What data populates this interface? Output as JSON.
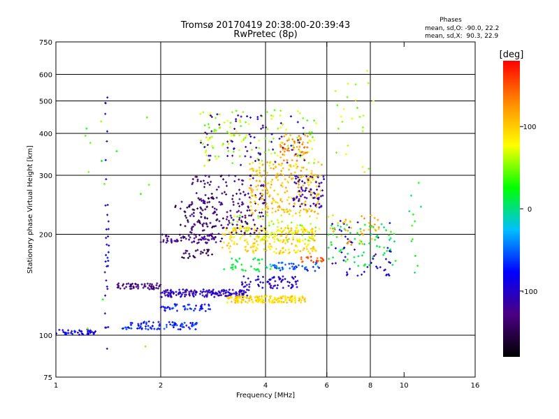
{
  "chart_data": {
    "type": "scatter",
    "title": "Tromsø 20170419 20:38:00-20:39:43",
    "subtitle": "RwPretec (8p)",
    "xlabel": "Frequency [MHz]",
    "ylabel": "Stationary phase Virtual Height [km]",
    "x_scale": "log",
    "y_scale": "log",
    "xlim": [
      1,
      16
    ],
    "ylim": [
      75,
      750
    ],
    "x_ticks": [
      1,
      2,
      4,
      6,
      8,
      10,
      16
    ],
    "y_ticks": [
      75,
      100,
      200,
      300,
      400,
      500,
      600,
      750
    ],
    "x_gridlines": [
      2,
      4,
      6,
      8
    ],
    "y_gridlines": [
      100,
      200,
      300,
      400,
      500,
      600
    ],
    "grid": true,
    "stats": {
      "heading": "Phases",
      "line_o": "mean, sd,O: -90.0, 22.2",
      "line_x": "mean, sd,X:  90.3, 22.9"
    },
    "colorbar": {
      "label": "[deg]",
      "range": [
        -180,
        180
      ],
      "ticks": [
        100,
        0,
        -100
      ],
      "colors": [
        "#000000",
        "#4b0082",
        "#0000ff",
        "#00bfff",
        "#00ff00",
        "#ffff00",
        "#ff8c00",
        "#ff0000"
      ]
    },
    "clusters": [
      {
        "x": [
          1.0,
          1.3
        ],
        "y": [
          100,
          104
        ],
        "phase": -85,
        "n": 45
      },
      {
        "x": [
          1.55,
          2.55
        ],
        "y": [
          104,
          110
        ],
        "phase": -70,
        "n": 90
      },
      {
        "x": [
          1.5,
          2.0
        ],
        "y": [
          137,
          143
        ],
        "phase": -130,
        "n": 60
      },
      {
        "x": [
          2.0,
          3.6
        ],
        "y": [
          130,
          137
        ],
        "phase": -105,
        "n": 160
      },
      {
        "x": [
          2.0,
          2.8
        ],
        "y": [
          118,
          124
        ],
        "phase": -75,
        "n": 45
      },
      {
        "x": [
          3.1,
          5.2
        ],
        "y": [
          125,
          131
        ],
        "phase": 95,
        "n": 160
      },
      {
        "x": [
          3.4,
          5.0
        ],
        "y": [
          138,
          150
        ],
        "phase": -100,
        "n": 70
      },
      {
        "x": [
          2.0,
          3.0
        ],
        "y": [
          188,
          200
        ],
        "phase": -125,
        "n": 70
      },
      {
        "x": [
          2.3,
          2.9
        ],
        "y": [
          170,
          180
        ],
        "phase": -150,
        "n": 25
      },
      {
        "x": [
          3.0,
          5.6
        ],
        "y": [
          175,
          210
        ],
        "phase": 95,
        "n": 220
      },
      {
        "x": [
          3.2,
          5.8
        ],
        "y": [
          190,
          230
        ],
        "phase": 65,
        "n": 80
      },
      {
        "x": [
          3.0,
          4.5
        ],
        "y": [
          155,
          170
        ],
        "phase": 10,
        "n": 40
      },
      {
        "x": [
          4.2,
          5.8
        ],
        "y": [
          155,
          165
        ],
        "phase": -60,
        "n": 40
      },
      {
        "x": [
          5.0,
          5.9
        ],
        "y": [
          165,
          172
        ],
        "phase": 150,
        "n": 20
      },
      {
        "x": [
          2.4,
          4.0
        ],
        "y": [
          200,
          300
        ],
        "phase": -130,
        "n": 190
      },
      {
        "x": [
          2.2,
          2.9
        ],
        "y": [
          210,
          260
        ],
        "phase": -150,
        "n": 45
      },
      {
        "x": [
          3.6,
          5.8
        ],
        "y": [
          230,
          330
        ],
        "phase": 105,
        "n": 230
      },
      {
        "x": [
          4.8,
          5.9
        ],
        "y": [
          240,
          300
        ],
        "phase": -110,
        "n": 70
      },
      {
        "x": [
          4.4,
          5.3
        ],
        "y": [
          330,
          400
        ],
        "phase": 125,
        "n": 60
      },
      {
        "x": [
          2.6,
          5.6
        ],
        "y": [
          320,
          470
        ],
        "phase": 60,
        "n": 130
      },
      {
        "x": [
          2.6,
          5.2
        ],
        "y": [
          320,
          460
        ],
        "phase": -110,
        "n": 70
      },
      {
        "x": [
          6.0,
          9.5
        ],
        "y": [
          160,
          215
        ],
        "phase": 15,
        "n": 70
      },
      {
        "x": [
          6.2,
          9.3
        ],
        "y": [
          150,
          220
        ],
        "phase": -95,
        "n": 50
      },
      {
        "x": [
          6.0,
          8.5
        ],
        "y": [
          185,
          230
        ],
        "phase": 110,
        "n": 40
      },
      {
        "x": [
          1.38,
          1.42
        ],
        "y": [
          90,
          560
        ],
        "phase": -95,
        "n": 35
      },
      {
        "x": [
          1.2,
          1.9
        ],
        "y": [
          90,
          470
        ],
        "phase": 40,
        "n": 14
      },
      {
        "x": [
          6.2,
          8.2
        ],
        "y": [
          290,
          620
        ],
        "phase": 60,
        "n": 25
      },
      {
        "x": [
          10.2,
          11.2
        ],
        "y": [
          150,
          320
        ],
        "phase": 20,
        "n": 12
      }
    ]
  }
}
